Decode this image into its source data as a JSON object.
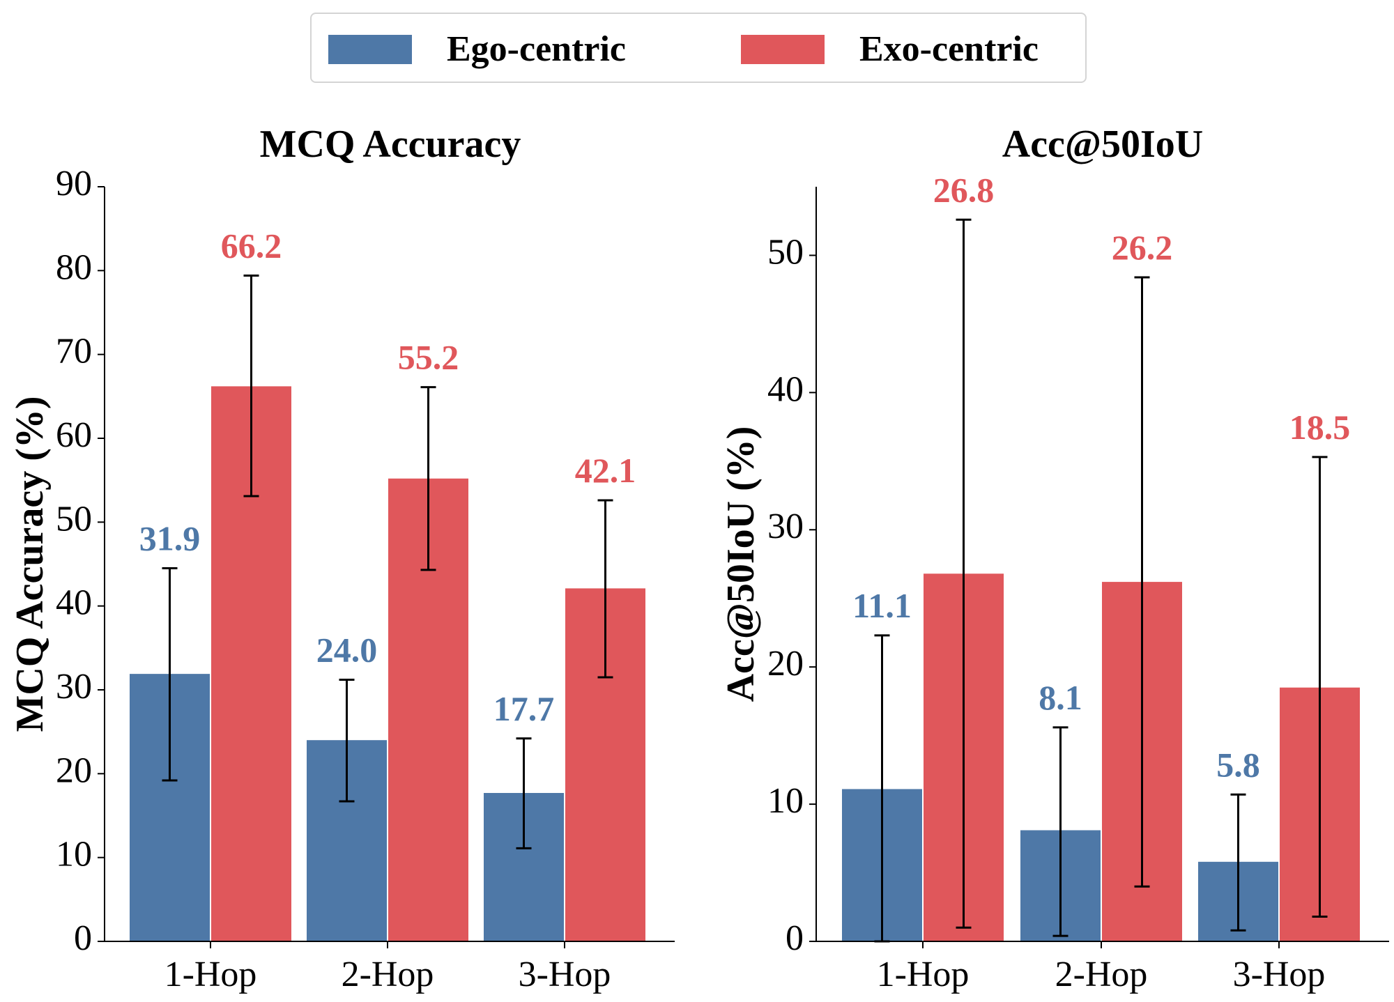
{
  "legend": {
    "items": [
      {
        "label": "Ego-centric",
        "color": "#4e78a7"
      },
      {
        "label": "Exo-centric",
        "color": "#e0575b"
      }
    ]
  },
  "chart_data": [
    {
      "type": "bar",
      "title": "MCQ Accuracy",
      "xlabel": "",
      "ylabel": "MCQ Accuracy (%)",
      "ylim": [
        0,
        90
      ],
      "yticks": [
        0,
        10,
        20,
        30,
        40,
        50,
        60,
        70,
        80,
        90
      ],
      "categories": [
        "1-Hop",
        "2-Hop",
        "3-Hop"
      ],
      "series": [
        {
          "name": "Ego-centric",
          "color": "#4e78a7",
          "values": [
            31.9,
            24.0,
            17.7
          ],
          "labels": [
            "31.9",
            "24.0",
            "17.7"
          ],
          "err_low": [
            19.2,
            16.7,
            11.1
          ],
          "err_high": [
            44.5,
            31.2,
            24.2
          ]
        },
        {
          "name": "Exo-centric",
          "color": "#e0575b",
          "values": [
            66.2,
            55.2,
            42.1
          ],
          "labels": [
            "66.2",
            "55.2",
            "42.1"
          ],
          "err_low": [
            53.1,
            44.3,
            31.5
          ],
          "err_high": [
            79.4,
            66.1,
            52.6
          ]
        }
      ]
    },
    {
      "type": "bar",
      "title": "Acc@50IoU",
      "xlabel": "",
      "ylabel": "Acc@50IoU (%)",
      "ylim": [
        0,
        55
      ],
      "yticks": [
        0,
        10,
        20,
        30,
        40,
        50
      ],
      "categories": [
        "1-Hop",
        "2-Hop",
        "3-Hop"
      ],
      "series": [
        {
          "name": "Ego-centric",
          "color": "#4e78a7",
          "values": [
            11.1,
            8.1,
            5.8
          ],
          "labels": [
            "11.1",
            "8.1",
            "5.8"
          ],
          "err_low": [
            0.0,
            0.4,
            0.8
          ],
          "err_high": [
            22.3,
            15.6,
            10.7
          ]
        },
        {
          "name": "Exo-centric",
          "color": "#e0575b",
          "values": [
            26.8,
            26.2,
            18.5
          ],
          "labels": [
            "26.8",
            "26.2",
            "18.5"
          ],
          "err_low": [
            1.0,
            4.0,
            1.8
          ],
          "err_high": [
            52.6,
            48.4,
            35.3
          ]
        }
      ]
    }
  ]
}
